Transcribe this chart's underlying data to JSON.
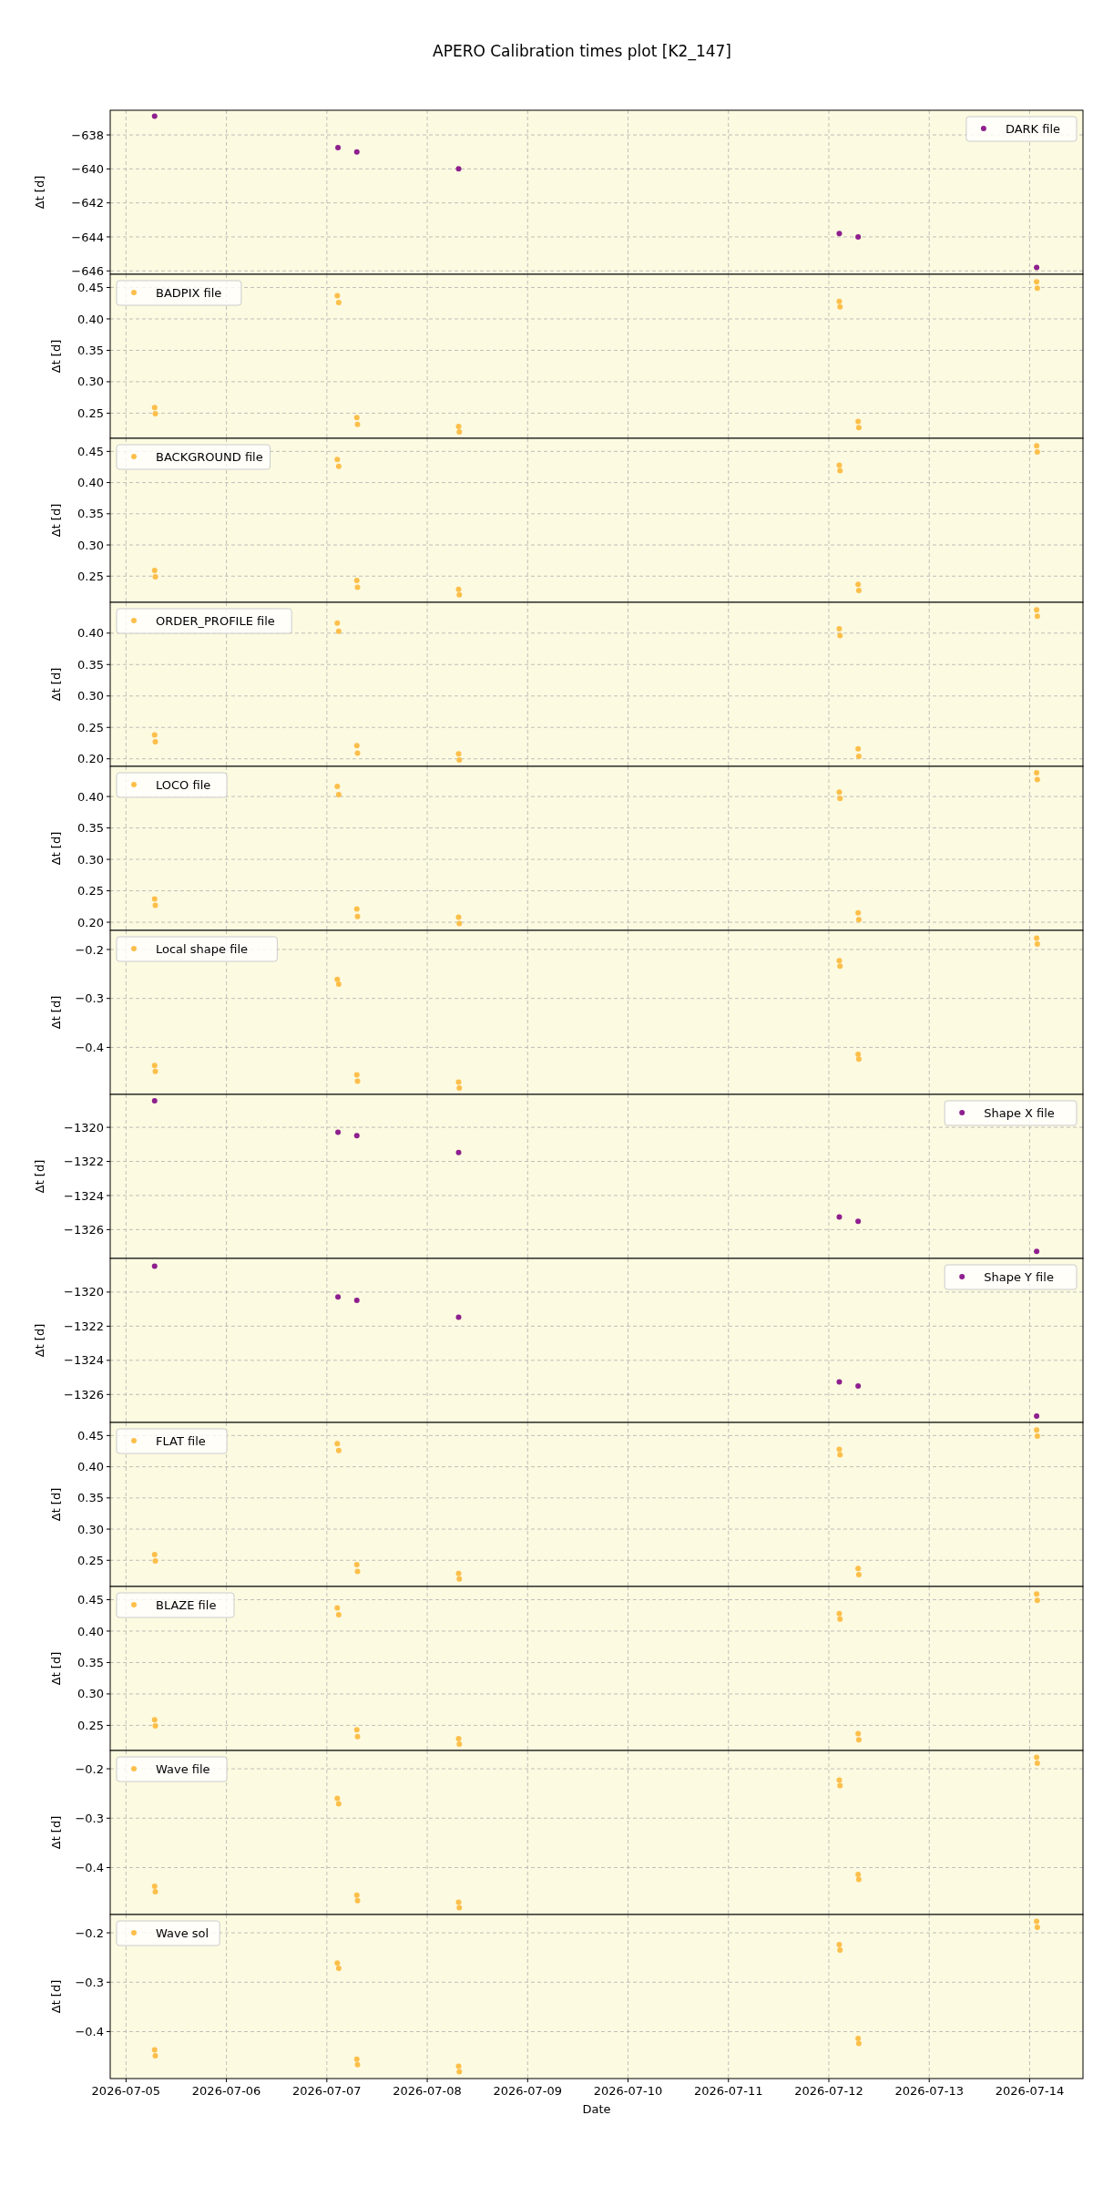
{
  "chart_data": [
    {
      "type": "scatter",
      "title": "APERO Calibration times plot [K2_147]",
      "ylabel": "Δt [d]",
      "xlim": [
        "2026-07-04T20:13",
        "2026-07-14T12:45"
      ],
      "xticks": [
        "2026-07-05",
        "2026-07-06",
        "2026-07-07",
        "2026-07-08",
        "2026-07-09",
        "2026-07-10",
        "2026-07-11",
        "2026-07-12",
        "2026-07-13",
        "2026-07-14"
      ],
      "ylim": [
        -646.2,
        -636.55
      ],
      "yticks": [
        -646,
        -644,
        -642,
        -640,
        -638
      ],
      "grid": true,
      "legend": "top right",
      "marker": "circle",
      "tick_labels": "y",
      "series": [
        {
          "name": "DARK file",
          "color": "#8e1f8e",
          "x": [
            "2026-07-05T06:50",
            "2026-07-07T02:40",
            "2026-07-07T07:10",
            "2026-07-08T07:30",
            "2026-07-12T02:30",
            "2026-07-12T07:00",
            "2026-07-14T01:40"
          ],
          "values": [
            -636.9,
            -638.75,
            -639.0,
            -640.0,
            -643.8,
            -644.0,
            -645.8
          ]
        }
      ]
    },
    {
      "type": "scatter",
      "ylabel": "Δt [d]",
      "x": [
        "2026-07-05T06:50",
        "2026-07-05T07:00",
        "2026-07-07T02:30",
        "2026-07-07T02:50",
        "2026-07-07T07:10",
        "2026-07-07T07:20",
        "2026-07-08T07:30",
        "2026-07-08T07:40",
        "2026-07-12T02:30",
        "2026-07-12T02:40",
        "2026-07-12T07:00",
        "2026-07-12T07:10",
        "2026-07-14T01:40",
        "2026-07-14T01:50"
      ],
      "xlim": [
        "2026-07-04T20:13",
        "2026-07-14T12:45"
      ],
      "xticks": [
        "2026-07-05",
        "2026-07-06",
        "2026-07-07",
        "2026-07-08",
        "2026-07-09",
        "2026-07-10",
        "2026-07-11",
        "2026-07-12",
        "2026-07-13",
        "2026-07-14"
      ],
      "ylim": [
        0.21,
        0.471
      ],
      "yticks": [
        {
          "value": 0.25,
          "label": "0.25"
        },
        {
          "value": 0.3,
          "label": "0.30"
        },
        {
          "value": 0.35,
          "label": "0.35"
        },
        {
          "value": 0.4,
          "label": "0.40"
        },
        {
          "value": 0.45,
          "label": "0.45"
        }
      ],
      "grid": true,
      "legend": "top left",
      "marker": "circle",
      "tick_labels": "y",
      "series": [
        {
          "name": "BADPIX file",
          "color": "#fdbf4b",
          "values": [
            0.259,
            0.249,
            0.437,
            0.426,
            0.243,
            0.232,
            0.229,
            0.22,
            0.428,
            0.419,
            0.237,
            0.227,
            0.459,
            0.449
          ]
        }
      ]
    },
    {
      "type": "scatter",
      "ylabel": "Δt [d]",
      "x": [
        "2026-07-05T06:50",
        "2026-07-05T07:00",
        "2026-07-07T02:30",
        "2026-07-07T02:50",
        "2026-07-07T07:10",
        "2026-07-07T07:20",
        "2026-07-08T07:30",
        "2026-07-08T07:40",
        "2026-07-12T02:30",
        "2026-07-12T02:40",
        "2026-07-12T07:00",
        "2026-07-12T07:10",
        "2026-07-14T01:40",
        "2026-07-14T01:50"
      ],
      "xlim": [
        "2026-07-04T20:13",
        "2026-07-14T12:45"
      ],
      "xticks": [
        "2026-07-05",
        "2026-07-06",
        "2026-07-07",
        "2026-07-08",
        "2026-07-09",
        "2026-07-10",
        "2026-07-11",
        "2026-07-12",
        "2026-07-13",
        "2026-07-14"
      ],
      "ylim": [
        0.208,
        0.471
      ],
      "yticks": [
        {
          "value": 0.25,
          "label": "0.25"
        },
        {
          "value": 0.3,
          "label": "0.30"
        },
        {
          "value": 0.35,
          "label": "0.35"
        },
        {
          "value": 0.4,
          "label": "0.40"
        },
        {
          "value": 0.45,
          "label": "0.45"
        }
      ],
      "grid": true,
      "legend": "top left",
      "marker": "circle",
      "tick_labels": "y",
      "series": [
        {
          "name": "BACKGROUND file",
          "color": "#fdbf4b",
          "values": [
            0.259,
            0.249,
            0.437,
            0.426,
            0.243,
            0.232,
            0.229,
            0.22,
            0.428,
            0.419,
            0.237,
            0.227,
            0.459,
            0.449
          ]
        }
      ]
    },
    {
      "type": "scatter",
      "ylabel": "Δt [d]",
      "x": [
        "2026-07-05T06:50",
        "2026-07-05T07:00",
        "2026-07-07T02:30",
        "2026-07-07T02:50",
        "2026-07-07T07:10",
        "2026-07-07T07:20",
        "2026-07-08T07:30",
        "2026-07-08T07:40",
        "2026-07-12T02:30",
        "2026-07-12T02:40",
        "2026-07-12T07:00",
        "2026-07-12T07:10",
        "2026-07-14T01:40",
        "2026-07-14T01:50"
      ],
      "xlim": [
        "2026-07-04T20:13",
        "2026-07-14T12:45"
      ],
      "xticks": [
        "2026-07-05",
        "2026-07-06",
        "2026-07-07",
        "2026-07-08",
        "2026-07-09",
        "2026-07-10",
        "2026-07-11",
        "2026-07-12",
        "2026-07-13",
        "2026-07-14"
      ],
      "ylim": [
        0.188,
        0.449
      ],
      "yticks": [
        {
          "value": 0.2,
          "label": "0.20"
        },
        {
          "value": 0.25,
          "label": "0.25"
        },
        {
          "value": 0.3,
          "label": "0.30"
        },
        {
          "value": 0.35,
          "label": "0.35"
        },
        {
          "value": 0.4,
          "label": "0.40"
        }
      ],
      "grid": true,
      "legend": "top left",
      "marker": "circle",
      "tick_labels": "y",
      "series": [
        {
          "name": "ORDER_PROFILE file",
          "color": "#fdbf4b",
          "values": [
            0.238,
            0.227,
            0.416,
            0.403,
            0.221,
            0.209,
            0.208,
            0.198,
            0.407,
            0.396,
            0.216,
            0.204,
            0.437,
            0.427
          ]
        }
      ]
    },
    {
      "type": "scatter",
      "ylabel": "Δt [d]",
      "x": [
        "2026-07-05T06:50",
        "2026-07-05T07:00",
        "2026-07-07T02:30",
        "2026-07-07T02:50",
        "2026-07-07T07:10",
        "2026-07-07T07:20",
        "2026-07-08T07:30",
        "2026-07-08T07:40",
        "2026-07-12T02:30",
        "2026-07-12T02:40",
        "2026-07-12T07:00",
        "2026-07-12T07:10",
        "2026-07-14T01:40",
        "2026-07-14T01:50"
      ],
      "xlim": [
        "2026-07-04T20:13",
        "2026-07-14T12:45"
      ],
      "xticks": [
        "2026-07-05",
        "2026-07-06",
        "2026-07-07",
        "2026-07-08",
        "2026-07-09",
        "2026-07-10",
        "2026-07-11",
        "2026-07-12",
        "2026-07-13",
        "2026-07-14"
      ],
      "ylim": [
        0.187,
        0.448
      ],
      "yticks": [
        {
          "value": 0.2,
          "label": "0.20"
        },
        {
          "value": 0.25,
          "label": "0.25"
        },
        {
          "value": 0.3,
          "label": "0.30"
        },
        {
          "value": 0.35,
          "label": "0.35"
        },
        {
          "value": 0.4,
          "label": "0.40"
        }
      ],
      "grid": true,
      "legend": "top left",
      "marker": "circle",
      "tick_labels": "y",
      "series": [
        {
          "name": "LOCO file",
          "color": "#fdbf4b",
          "values": [
            0.237,
            0.227,
            0.416,
            0.403,
            0.221,
            0.209,
            0.208,
            0.198,
            0.407,
            0.397,
            0.215,
            0.204,
            0.438,
            0.427
          ]
        }
      ]
    },
    {
      "type": "scatter",
      "ylabel": "Δt [d]",
      "x": [
        "2026-07-05T06:50",
        "2026-07-05T07:00",
        "2026-07-07T02:30",
        "2026-07-07T02:50",
        "2026-07-07T07:10",
        "2026-07-07T07:20",
        "2026-07-08T07:30",
        "2026-07-08T07:40",
        "2026-07-12T02:30",
        "2026-07-12T02:40",
        "2026-07-12T07:00",
        "2026-07-12T07:10",
        "2026-07-14T01:40",
        "2026-07-14T01:50"
      ],
      "xlim": [
        "2026-07-04T20:13",
        "2026-07-14T12:45"
      ],
      "xticks": [
        "2026-07-05",
        "2026-07-06",
        "2026-07-07",
        "2026-07-08",
        "2026-07-09",
        "2026-07-10",
        "2026-07-11",
        "2026-07-12",
        "2026-07-13",
        "2026-07-14"
      ],
      "ylim": [
        -0.496,
        -0.161
      ],
      "yticks": [
        -0.4,
        -0.3,
        -0.2
      ],
      "grid": true,
      "legend": "top left",
      "marker": "circle",
      "tick_labels": "y",
      "series": [
        {
          "name": "Local shape file",
          "color": "#fdbf4b",
          "values": [
            -0.437,
            -0.449,
            -0.261,
            -0.271,
            -0.456,
            -0.469,
            -0.471,
            -0.483,
            -0.223,
            -0.234,
            -0.414,
            -0.424,
            -0.177,
            -0.189
          ]
        }
      ]
    },
    {
      "type": "scatter",
      "ylabel": "Δt [d]",
      "xlim": [
        "2026-07-04T20:13",
        "2026-07-14T12:45"
      ],
      "xticks": [
        "2026-07-05",
        "2026-07-06",
        "2026-07-07",
        "2026-07-08",
        "2026-07-09",
        "2026-07-10",
        "2026-07-11",
        "2026-07-12",
        "2026-07-13",
        "2026-07-14"
      ],
      "ylim": [
        -1327.69,
        -1318.07
      ],
      "yticks": [
        -1326,
        -1324,
        -1322,
        -1320
      ],
      "grid": true,
      "legend": "top right",
      "marker": "circle",
      "tick_labels": "y",
      "series": [
        {
          "name": "Shape X file",
          "color": "#8e1f8e",
          "x": [
            "2026-07-05T06:50",
            "2026-07-07T02:40",
            "2026-07-07T07:10",
            "2026-07-08T07:30",
            "2026-07-12T02:30",
            "2026-07-12T07:00",
            "2026-07-14T01:40"
          ],
          "values": [
            -1318.44,
            -1320.29,
            -1320.49,
            -1321.48,
            -1325.26,
            -1325.51,
            -1327.28
          ]
        }
      ]
    },
    {
      "type": "scatter",
      "ylabel": "Δt [d]",
      "xlim": [
        "2026-07-04T20:13",
        "2026-07-14T12:45"
      ],
      "xticks": [
        "2026-07-05",
        "2026-07-06",
        "2026-07-07",
        "2026-07-08",
        "2026-07-09",
        "2026-07-10",
        "2026-07-11",
        "2026-07-12",
        "2026-07-13",
        "2026-07-14"
      ],
      "ylim": [
        -1327.64,
        -1318.03
      ],
      "yticks": [
        -1326,
        -1324,
        -1322,
        -1320
      ],
      "grid": true,
      "legend": "top right",
      "marker": "circle",
      "tick_labels": "y",
      "series": [
        {
          "name": "Shape Y file",
          "color": "#8e1f8e",
          "x": [
            "2026-07-05T06:50",
            "2026-07-07T02:40",
            "2026-07-07T07:10",
            "2026-07-08T07:30",
            "2026-07-12T02:30",
            "2026-07-12T07:00",
            "2026-07-14T01:40"
          ],
          "values": [
            -1318.48,
            -1320.29,
            -1320.49,
            -1321.48,
            -1325.26,
            -1325.51,
            -1327.27
          ]
        }
      ]
    },
    {
      "type": "scatter",
      "ylabel": "Δt [d]",
      "x": [
        "2026-07-05T06:50",
        "2026-07-05T07:00",
        "2026-07-07T02:30",
        "2026-07-07T02:50",
        "2026-07-07T07:10",
        "2026-07-07T07:20",
        "2026-07-08T07:30",
        "2026-07-08T07:40",
        "2026-07-12T02:30",
        "2026-07-12T02:40",
        "2026-07-12T07:00",
        "2026-07-12T07:10",
        "2026-07-14T01:40",
        "2026-07-14T01:50"
      ],
      "xlim": [
        "2026-07-04T20:13",
        "2026-07-14T12:45"
      ],
      "xticks": [
        "2026-07-05",
        "2026-07-06",
        "2026-07-07",
        "2026-07-08",
        "2026-07-09",
        "2026-07-10",
        "2026-07-11",
        "2026-07-12",
        "2026-07-13",
        "2026-07-14"
      ],
      "ylim": [
        0.208,
        0.471
      ],
      "yticks": [
        {
          "value": 0.25,
          "label": "0.25"
        },
        {
          "value": 0.3,
          "label": "0.30"
        },
        {
          "value": 0.35,
          "label": "0.35"
        },
        {
          "value": 0.4,
          "label": "0.40"
        },
        {
          "value": 0.45,
          "label": "0.45"
        }
      ],
      "grid": true,
      "legend": "top left",
      "marker": "circle",
      "tick_labels": "y",
      "series": [
        {
          "name": "FLAT file",
          "color": "#fdbf4b",
          "values": [
            0.259,
            0.249,
            0.437,
            0.426,
            0.243,
            0.232,
            0.229,
            0.22,
            0.428,
            0.419,
            0.237,
            0.227,
            0.459,
            0.449
          ]
        }
      ]
    },
    {
      "type": "scatter",
      "ylabel": "Δt [d]",
      "x": [
        "2026-07-05T06:50",
        "2026-07-05T07:00",
        "2026-07-07T02:30",
        "2026-07-07T02:50",
        "2026-07-07T07:10",
        "2026-07-07T07:20",
        "2026-07-08T07:30",
        "2026-07-08T07:40",
        "2026-07-12T02:30",
        "2026-07-12T02:40",
        "2026-07-12T07:00",
        "2026-07-12T07:10",
        "2026-07-14T01:40",
        "2026-07-14T01:50"
      ],
      "xlim": [
        "2026-07-04T20:13",
        "2026-07-14T12:45"
      ],
      "xticks": [
        "2026-07-05",
        "2026-07-06",
        "2026-07-07",
        "2026-07-08",
        "2026-07-09",
        "2026-07-10",
        "2026-07-11",
        "2026-07-12",
        "2026-07-13",
        "2026-07-14"
      ],
      "ylim": [
        0.21,
        0.471
      ],
      "yticks": [
        {
          "value": 0.25,
          "label": "0.25"
        },
        {
          "value": 0.3,
          "label": "0.30"
        },
        {
          "value": 0.35,
          "label": "0.35"
        },
        {
          "value": 0.4,
          "label": "0.40"
        },
        {
          "value": 0.45,
          "label": "0.45"
        }
      ],
      "grid": true,
      "legend": "top left",
      "marker": "circle",
      "tick_labels": "y",
      "series": [
        {
          "name": "BLAZE file",
          "color": "#fdbf4b",
          "values": [
            0.259,
            0.249,
            0.437,
            0.426,
            0.243,
            0.232,
            0.229,
            0.22,
            0.428,
            0.419,
            0.237,
            0.227,
            0.459,
            0.449
          ]
        }
      ]
    },
    {
      "type": "scatter",
      "ylabel": "Δt [d]",
      "x": [
        "2026-07-05T06:50",
        "2026-07-05T07:00",
        "2026-07-07T02:30",
        "2026-07-07T02:50",
        "2026-07-07T07:10",
        "2026-07-07T07:20",
        "2026-07-08T07:30",
        "2026-07-08T07:40",
        "2026-07-12T02:30",
        "2026-07-12T02:40",
        "2026-07-12T07:00",
        "2026-07-12T07:10",
        "2026-07-14T01:40",
        "2026-07-14T01:50"
      ],
      "xlim": [
        "2026-07-04T20:13",
        "2026-07-14T12:45"
      ],
      "xticks": [
        "2026-07-05",
        "2026-07-06",
        "2026-07-07",
        "2026-07-08",
        "2026-07-09",
        "2026-07-10",
        "2026-07-11",
        "2026-07-12",
        "2026-07-13",
        "2026-07-14"
      ],
      "ylim": [
        -0.495,
        -0.163
      ],
      "yticks": [
        -0.4,
        -0.3,
        -0.2
      ],
      "grid": true,
      "legend": "top left",
      "marker": "circle",
      "tick_labels": "y",
      "series": [
        {
          "name": "Wave file",
          "color": "#fdbf4b",
          "values": [
            -0.438,
            -0.449,
            -0.26,
            -0.271,
            -0.456,
            -0.467,
            -0.47,
            -0.481,
            -0.223,
            -0.234,
            -0.414,
            -0.424,
            -0.177,
            -0.189
          ]
        }
      ]
    },
    {
      "type": "scatter",
      "xlabel": "Date",
      "ylabel": "Δt [d]",
      "x": [
        "2026-07-05T06:50",
        "2026-07-05T07:00",
        "2026-07-07T02:30",
        "2026-07-07T02:50",
        "2026-07-07T07:10",
        "2026-07-07T07:20",
        "2026-07-08T07:30",
        "2026-07-08T07:40",
        "2026-07-12T02:30",
        "2026-07-12T02:40",
        "2026-07-12T07:00",
        "2026-07-12T07:10",
        "2026-07-14T01:40",
        "2026-07-14T01:50"
      ],
      "xlim": [
        "2026-07-04T20:13",
        "2026-07-14T12:45"
      ],
      "xticks": [
        "2026-07-05",
        "2026-07-06",
        "2026-07-07",
        "2026-07-08",
        "2026-07-09",
        "2026-07-10",
        "2026-07-11",
        "2026-07-12",
        "2026-07-13",
        "2026-07-14"
      ],
      "ylim": [
        -0.495,
        -0.163
      ],
      "yticks": [
        -0.4,
        -0.3,
        -0.2
      ],
      "grid": true,
      "legend": "top left",
      "marker": "circle",
      "series": [
        {
          "name": "Wave sol",
          "color": "#fdbf4b",
          "values": [
            -0.437,
            -0.449,
            -0.261,
            -0.272,
            -0.456,
            -0.467,
            -0.47,
            -0.481,
            -0.224,
            -0.235,
            -0.414,
            -0.424,
            -0.177,
            -0.189
          ]
        }
      ]
    }
  ]
}
